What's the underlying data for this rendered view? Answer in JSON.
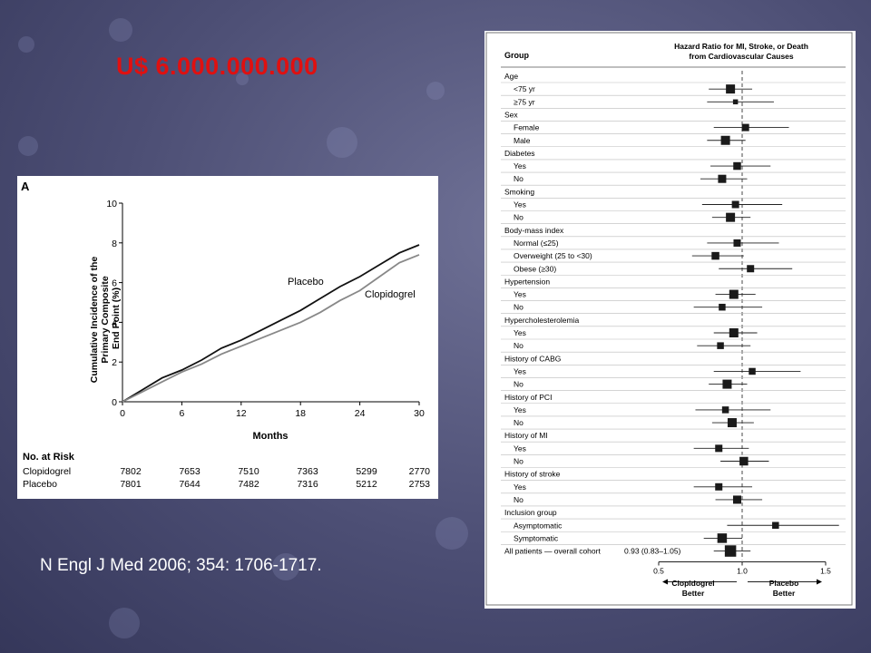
{
  "headline": "U$ 6.000.000.000",
  "citation": "N Engl J Med 2006; 354: 1706-1717.",
  "colors": {
    "accent_red": "#e01010",
    "placebo_line": "#111111",
    "clopidogrel_line": "#888888"
  },
  "chart_data": [
    {
      "type": "line",
      "panel_label": "A",
      "xlabel": "Months",
      "ylabel": "Cumulative Incidence of the Primary Composite End Point (%)",
      "xlim": [
        0,
        30
      ],
      "ylim": [
        0,
        10
      ],
      "x_ticks": [
        0,
        6,
        12,
        18,
        24,
        30
      ],
      "y_ticks": [
        0,
        2,
        4,
        6,
        8,
        10
      ],
      "grid": false,
      "series": [
        {
          "name": "Placebo",
          "x": [
            0,
            2,
            4,
            6,
            8,
            10,
            12,
            14,
            16,
            18,
            20,
            22,
            24,
            26,
            28,
            30
          ],
          "y": [
            0,
            0.6,
            1.2,
            1.6,
            2.1,
            2.7,
            3.1,
            3.6,
            4.1,
            4.6,
            5.2,
            5.8,
            6.3,
            6.9,
            7.5,
            7.9
          ]
        },
        {
          "name": "Clopidogrel",
          "x": [
            0,
            2,
            4,
            6,
            8,
            10,
            12,
            14,
            16,
            18,
            20,
            22,
            24,
            26,
            28,
            30
          ],
          "y": [
            0,
            0.5,
            1.0,
            1.5,
            1.9,
            2.4,
            2.8,
            3.2,
            3.6,
            4.0,
            4.5,
            5.1,
            5.6,
            6.3,
            7.0,
            7.4
          ]
        }
      ],
      "risk_table": {
        "title": "No. at Risk",
        "rows": [
          {
            "label": "Clopidogrel",
            "values": [
              "7802",
              "7653",
              "7510",
              "7363",
              "5299",
              "2770"
            ]
          },
          {
            "label": "Placebo",
            "values": [
              "7801",
              "7644",
              "7482",
              "7316",
              "5212",
              "2753"
            ]
          }
        ]
      }
    },
    {
      "type": "forest",
      "col_group": "Group",
      "title_lines": [
        "Hazard Ratio for MI, Stroke, or Death",
        "from Cardiovascular Causes"
      ],
      "xlim": [
        0.5,
        1.5
      ],
      "x_ticks": [
        "0.5",
        "1.0",
        "1.5"
      ],
      "reference": 1.0,
      "left_arrow_label": [
        "Clopidogrel",
        "Better"
      ],
      "right_arrow_label": [
        "Placebo",
        "Better"
      ],
      "rows": [
        {
          "label": "Age",
          "header": true
        },
        {
          "label": "<75 yr",
          "hr": 0.93,
          "lo": 0.8,
          "hi": 1.06,
          "size": 1.0
        },
        {
          "label": "≥75 yr",
          "hr": 0.96,
          "lo": 0.79,
          "hi": 1.19,
          "size": 0.55
        },
        {
          "label": "Sex",
          "header": true
        },
        {
          "label": "Female",
          "hr": 1.02,
          "lo": 0.83,
          "hi": 1.28,
          "size": 0.8
        },
        {
          "label": "Male",
          "hr": 0.9,
          "lo": 0.79,
          "hi": 1.02,
          "size": 1.0
        },
        {
          "label": "Diabetes",
          "header": true
        },
        {
          "label": "Yes",
          "hr": 0.97,
          "lo": 0.81,
          "hi": 1.17,
          "size": 0.85
        },
        {
          "label": "No",
          "hr": 0.88,
          "lo": 0.75,
          "hi": 1.03,
          "size": 0.9
        },
        {
          "label": "Smoking",
          "header": true
        },
        {
          "label": "Yes",
          "hr": 0.96,
          "lo": 0.76,
          "hi": 1.24,
          "size": 0.8
        },
        {
          "label": "No",
          "hr": 0.93,
          "lo": 0.82,
          "hi": 1.05,
          "size": 1.0
        },
        {
          "label": "Body-mass index",
          "header": true
        },
        {
          "label": "Normal (≤25)",
          "hr": 0.97,
          "lo": 0.79,
          "hi": 1.22,
          "size": 0.8
        },
        {
          "label": "Overweight (25 to <30)",
          "hr": 0.84,
          "lo": 0.7,
          "hi": 1.01,
          "size": 0.85
        },
        {
          "label": "Obese (≥30)",
          "hr": 1.05,
          "lo": 0.86,
          "hi": 1.3,
          "size": 0.8
        },
        {
          "label": "Hypertension",
          "header": true
        },
        {
          "label": "Yes",
          "hr": 0.95,
          "lo": 0.84,
          "hi": 1.08,
          "size": 1.0
        },
        {
          "label": "No",
          "hr": 0.88,
          "lo": 0.71,
          "hi": 1.12,
          "size": 0.75
        },
        {
          "label": "Hypercholesterolemia",
          "header": true
        },
        {
          "label": "Yes",
          "hr": 0.95,
          "lo": 0.83,
          "hi": 1.09,
          "size": 1.0
        },
        {
          "label": "No",
          "hr": 0.87,
          "lo": 0.73,
          "hi": 1.05,
          "size": 0.75
        },
        {
          "label": "History of CABG",
          "header": true
        },
        {
          "label": "Yes",
          "hr": 1.06,
          "lo": 0.83,
          "hi": 1.35,
          "size": 0.75
        },
        {
          "label": "No",
          "hr": 0.91,
          "lo": 0.8,
          "hi": 1.03,
          "size": 1.0
        },
        {
          "label": "History of PCI",
          "header": true
        },
        {
          "label": "Yes",
          "hr": 0.9,
          "lo": 0.72,
          "hi": 1.17,
          "size": 0.75
        },
        {
          "label": "No",
          "hr": 0.94,
          "lo": 0.82,
          "hi": 1.07,
          "size": 1.0
        },
        {
          "label": "History of MI",
          "header": true
        },
        {
          "label": "Yes",
          "hr": 0.86,
          "lo": 0.71,
          "hi": 1.04,
          "size": 0.8
        },
        {
          "label": "No",
          "hr": 1.01,
          "lo": 0.87,
          "hi": 1.16,
          "size": 0.95
        },
        {
          "label": "History of stroke",
          "header": true
        },
        {
          "label": "Yes",
          "hr": 0.86,
          "lo": 0.71,
          "hi": 1.06,
          "size": 0.8
        },
        {
          "label": "No",
          "hr": 0.97,
          "lo": 0.84,
          "hi": 1.12,
          "size": 0.9
        },
        {
          "label": "Inclusion group",
          "header": true
        },
        {
          "label": "Asymptomatic",
          "hr": 1.2,
          "lo": 0.91,
          "hi": 1.58,
          "size": 0.75
        },
        {
          "label": "Symptomatic",
          "hr": 0.88,
          "lo": 0.77,
          "hi": 1.0,
          "size": 1.05
        },
        {
          "label": "All patients — overall cohort",
          "annotation": "0.93 (0.83–1.05)",
          "hr": 0.93,
          "lo": 0.83,
          "hi": 1.05,
          "size": 1.25
        }
      ]
    }
  ]
}
